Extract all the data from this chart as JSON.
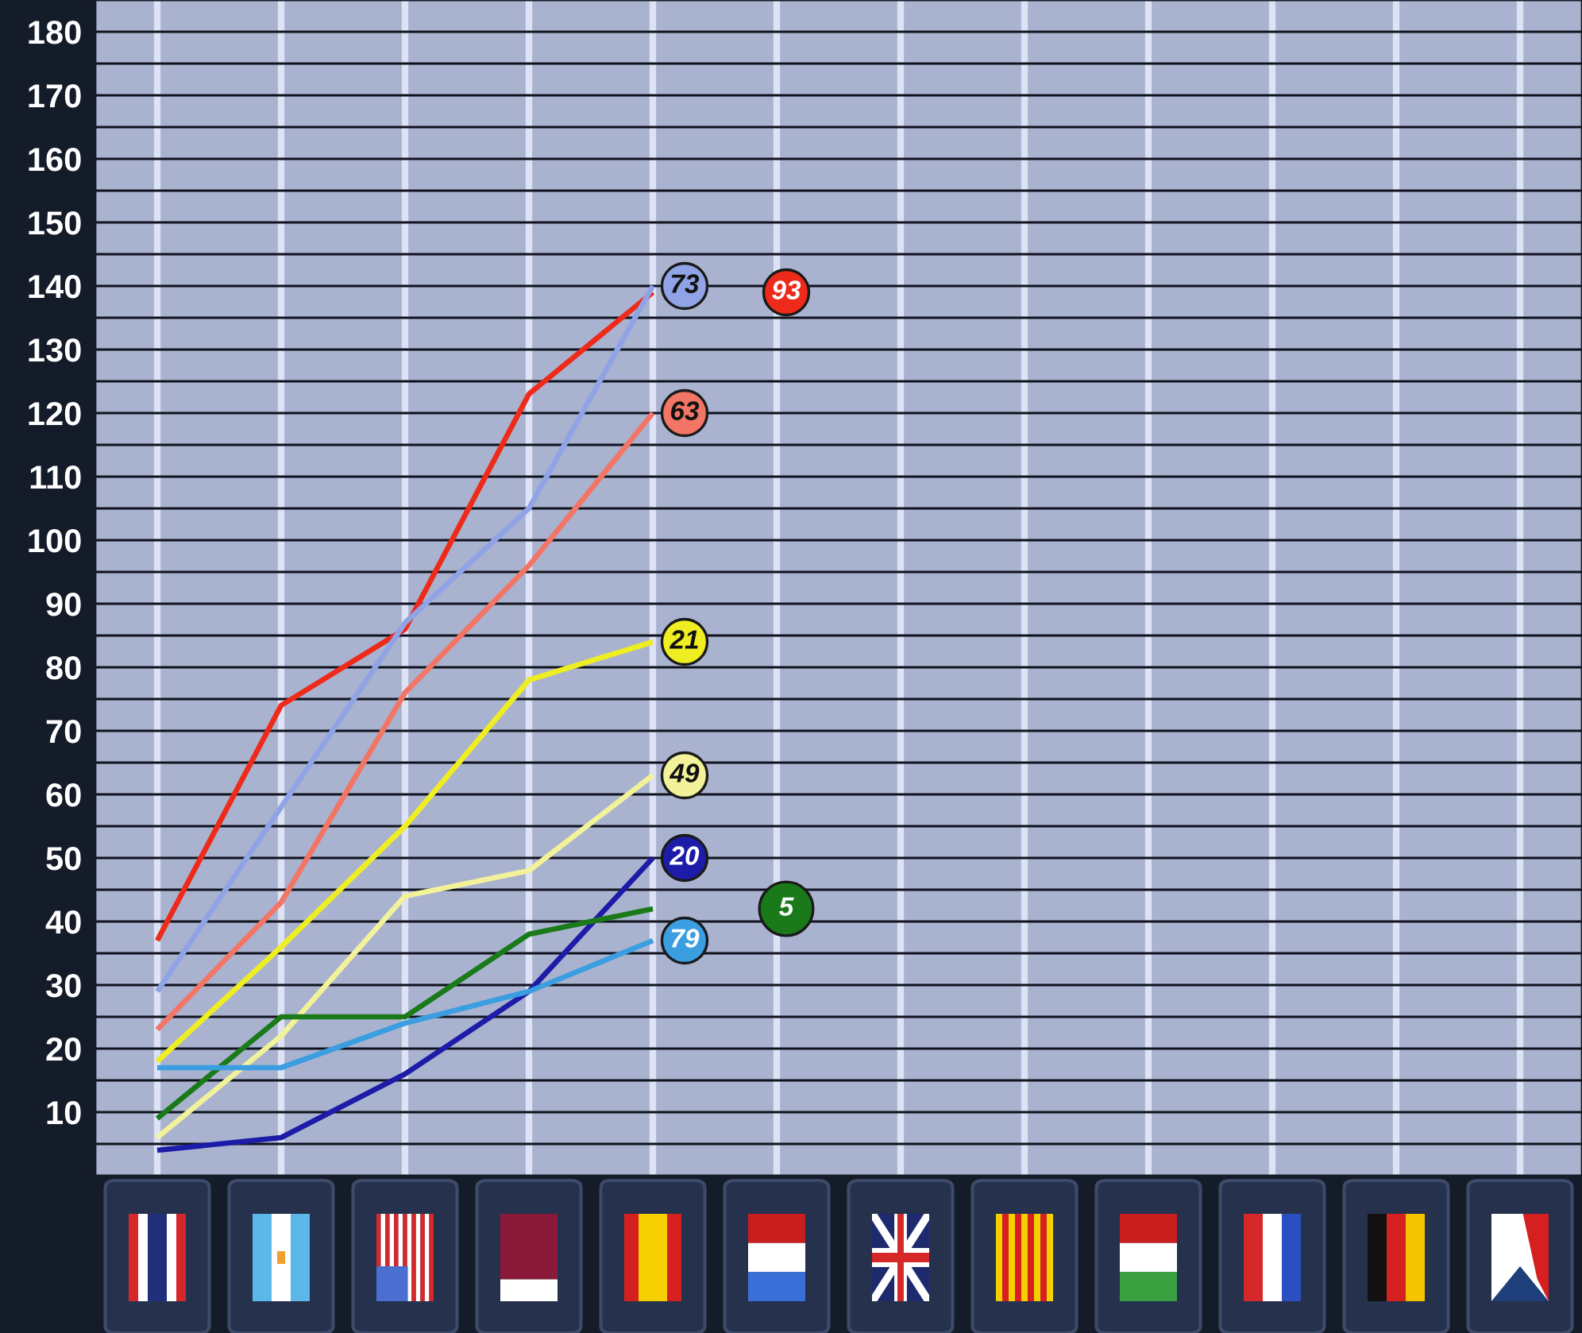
{
  "chart_data": {
    "type": "line",
    "categories": [
      null,
      null,
      null,
      null,
      null,
      null,
      null,
      null,
      null,
      null,
      null,
      null
    ],
    "series": [
      {
        "name": "93",
        "color": "#ee2a1a",
        "values": [
          37,
          74,
          86,
          123,
          139,
          null,
          null,
          null,
          null,
          null,
          null,
          null
        ]
      },
      {
        "name": "73",
        "color": "#8fa3e6",
        "values": [
          29,
          58,
          87,
          105,
          140,
          null,
          null,
          null,
          null,
          null,
          null,
          null
        ]
      },
      {
        "name": "63",
        "color": "#f27565",
        "values": [
          23,
          43,
          76,
          96,
          120,
          null,
          null,
          null,
          null,
          null,
          null,
          null
        ]
      },
      {
        "name": "21",
        "color": "#eeee22",
        "values": [
          18,
          36,
          55,
          78,
          84,
          null,
          null,
          null,
          null,
          null,
          null,
          null
        ]
      },
      {
        "name": "49",
        "color": "#f2f29a",
        "values": [
          6,
          22,
          44,
          48,
          63,
          null,
          null,
          null,
          null,
          null,
          null,
          null
        ]
      },
      {
        "name": "20",
        "color": "#1c1ca8",
        "values": [
          4,
          6,
          16,
          29,
          50,
          null,
          null,
          null,
          null,
          null,
          null,
          null
        ]
      },
      {
        "name": "5",
        "color": "#1a7a1a",
        "values": [
          9,
          25,
          25,
          38,
          42,
          null,
          null,
          null,
          null,
          null,
          null,
          null
        ]
      },
      {
        "name": "79",
        "color": "#3a9ee0",
        "values": [
          17,
          17,
          24,
          29,
          37,
          null,
          null,
          null,
          null,
          null,
          null,
          null
        ]
      }
    ],
    "ylim": [
      0,
      185
    ],
    "yticks": [
      {
        "value": 5,
        "label": null
      },
      10,
      {
        "value": 15,
        "label": null
      },
      20,
      {
        "value": 25,
        "label": null
      },
      30,
      {
        "value": 35,
        "label": null
      },
      40,
      {
        "value": 45,
        "label": null
      },
      50,
      {
        "value": 55,
        "label": null
      },
      60,
      {
        "value": 65,
        "label": null
      },
      70,
      {
        "value": 75,
        "label": null
      },
      80,
      {
        "value": 85,
        "label": null
      },
      90,
      {
        "value": 95,
        "label": null
      },
      100,
      {
        "value": 105,
        "label": null
      },
      110,
      {
        "value": 115,
        "label": null
      },
      120,
      {
        "value": 125,
        "label": null
      },
      130,
      {
        "value": 135,
        "label": null
      },
      140,
      {
        "value": 145,
        "label": null
      },
      150,
      {
        "value": 155,
        "label": null
      },
      160,
      {
        "value": 165,
        "label": null
      },
      170,
      {
        "value": 175,
        "label": null
      },
      180
    ],
    "grid": true,
    "tick_labels": "y",
    "line_style": "solid"
  }
}
